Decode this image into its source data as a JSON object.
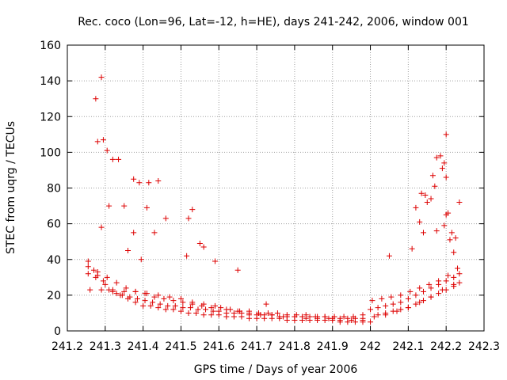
{
  "chart_data": {
    "type": "scatter",
    "title": "Rec. coco (Lon=96, Lat=-12, h=HE), days 241-242, 2006, window 001",
    "xlabel": "GPS time / Days of year 2006",
    "ylabel": "STEC from uqrg / TECUs",
    "xlim": [
      241.2,
      242.3
    ],
    "ylim": [
      0,
      160
    ],
    "xticks": [
      241.2,
      241.3,
      241.4,
      241.5,
      241.6,
      241.7,
      241.8,
      241.9,
      242,
      242.1,
      242.2,
      242.3
    ],
    "xtick_labels": [
      "241.2",
      "241.3",
      "241.4",
      "241.5",
      "241.6",
      "241.7",
      "241.8",
      "241.9",
      "242",
      "242.1",
      "242.2",
      "242.3"
    ],
    "yticks": [
      0,
      20,
      40,
      60,
      80,
      100,
      120,
      140,
      160
    ],
    "ytick_labels": [
      "0",
      "20",
      "40",
      "60",
      "80",
      "100",
      "120",
      "140",
      "160"
    ],
    "grid": true,
    "marker": "+",
    "color": "#dd0000",
    "series": [
      {
        "name": "STEC",
        "x": [
          241.255,
          241.27,
          241.28,
          241.295,
          241.31,
          241.33,
          241.345,
          241.365,
          241.385,
          241.405,
          241.425,
          241.445,
          241.465,
          241.485,
          241.505,
          241.525,
          241.545,
          241.565,
          241.585,
          241.6,
          241.62,
          241.64,
          241.66,
          241.68,
          241.7,
          241.72,
          241.74,
          241.76,
          241.78,
          241.8,
          241.82,
          241.84,
          241.86,
          241.88,
          241.9,
          241.92,
          241.94,
          241.96,
          241.98,
          242.0,
          242.02,
          242.04,
          242.06,
          242.08,
          242.1,
          242.12,
          242.14,
          242.16,
          242.18,
          242.2,
          242.22,
          242.235,
          241.255,
          241.275,
          241.3,
          241.32,
          241.34,
          241.36,
          241.38,
          241.4,
          241.42,
          241.44,
          241.46,
          241.48,
          241.5,
          241.52,
          241.54,
          241.56,
          241.58,
          241.6,
          241.62,
          241.64,
          241.66,
          241.68,
          241.7,
          241.72,
          241.74,
          241.76,
          241.78,
          241.8,
          241.82,
          241.84,
          241.86,
          241.88,
          241.9,
          241.92,
          241.94,
          241.96,
          241.98,
          242.0,
          242.02,
          242.04,
          242.06,
          242.08,
          242.1,
          242.12,
          242.14,
          242.16,
          242.18,
          242.2,
          242.22,
          242.235,
          241.255,
          241.28,
          241.305,
          241.33,
          241.355,
          241.38,
          241.405,
          241.43,
          241.455,
          241.48,
          241.505,
          241.53,
          241.555,
          241.58,
          241.605,
          241.63,
          241.655,
          241.68,
          241.705,
          241.73,
          241.755,
          241.78,
          241.805,
          241.83,
          241.855,
          241.88,
          241.905,
          241.93,
          241.955,
          241.98,
          242.005,
          242.03,
          242.055,
          242.08,
          242.105,
          242.13,
          242.155,
          242.18,
          242.205,
          242.23,
          241.26,
          241.29,
          241.32,
          241.35,
          241.38,
          241.41,
          241.44,
          241.47,
          241.5,
          241.53,
          241.56,
          241.59,
          241.62,
          241.65,
          241.68,
          241.71,
          241.74,
          241.77,
          241.8,
          241.83,
          241.86,
          241.89,
          241.92,
          241.95,
          241.98,
          242.01,
          242.04,
          242.07,
          242.1,
          242.13,
          242.16,
          242.19,
          242.22,
          241.29,
          241.275,
          241.28,
          241.295,
          241.305,
          241.32,
          241.335,
          241.35,
          241.375,
          241.39,
          241.415,
          241.44,
          241.375,
          241.41,
          241.53,
          241.52,
          241.55,
          241.29,
          241.31,
          241.36,
          241.395,
          241.43,
          241.46,
          241.515,
          241.56,
          241.59,
          241.65,
          241.725,
          242.2,
          242.185,
          242.175,
          242.195,
          242.2,
          242.165,
          242.145,
          242.205,
          242.225,
          242.235,
          242.16,
          242.135,
          242.12,
          242.15,
          242.175,
          242.195,
          242.215,
          242.13,
          242.17,
          242.19,
          242.2,
          242.21,
          242.05,
          242.14,
          242.11,
          242.22
        ],
        "y": [
          36,
          34,
          31,
          28,
          23,
          21,
          20,
          19,
          18,
          17,
          16,
          15,
          14,
          14,
          13,
          13,
          12,
          12,
          11,
          11,
          10,
          10,
          10,
          9,
          9,
          9,
          9,
          8,
          8,
          8,
          8,
          8,
          8,
          8,
          7,
          7,
          7,
          7,
          7,
          12,
          13,
          14,
          15,
          16,
          18,
          20,
          22,
          24,
          26,
          28,
          30,
          32,
          32,
          30,
          26,
          22,
          20,
          18,
          16,
          14,
          14,
          13,
          12,
          12,
          11,
          10,
          10,
          9,
          9,
          9,
          8,
          8,
          8,
          7,
          7,
          7,
          7,
          7,
          6,
          6,
          6,
          6,
          6,
          6,
          6,
          5,
          5,
          5,
          5,
          5,
          9,
          10,
          11,
          12,
          13,
          15,
          17,
          19,
          21,
          23,
          25,
          27,
          39,
          33,
          30,
          27,
          24,
          22,
          21,
          19,
          18,
          17,
          16,
          15,
          14,
          13,
          13,
          12,
          11,
          11,
          10,
          10,
          10,
          9,
          9,
          9,
          8,
          8,
          8,
          8,
          8,
          9,
          17,
          18,
          19,
          20,
          22,
          24,
          26,
          28,
          31,
          35,
          23,
          23,
          23,
          22,
          22,
          21,
          20,
          19,
          18,
          16,
          15,
          14,
          12,
          11,
          10,
          9,
          9,
          8,
          8,
          7,
          7,
          7,
          6,
          6,
          6,
          8,
          9,
          11,
          13,
          16,
          19,
          23,
          26,
          142,
          130,
          106,
          107,
          101,
          96,
          96,
          70,
          85,
          83,
          83,
          84,
          55,
          69,
          68,
          63,
          49,
          58,
          70,
          45,
          40,
          55,
          63,
          42,
          47,
          39,
          34,
          15,
          110,
          98,
          97,
          94,
          86,
          87,
          76,
          66,
          52,
          72,
          74,
          77,
          69,
          72,
          56,
          59,
          55,
          61,
          81,
          91,
          65,
          51,
          42,
          55,
          46,
          44
        ]
      }
    ]
  }
}
